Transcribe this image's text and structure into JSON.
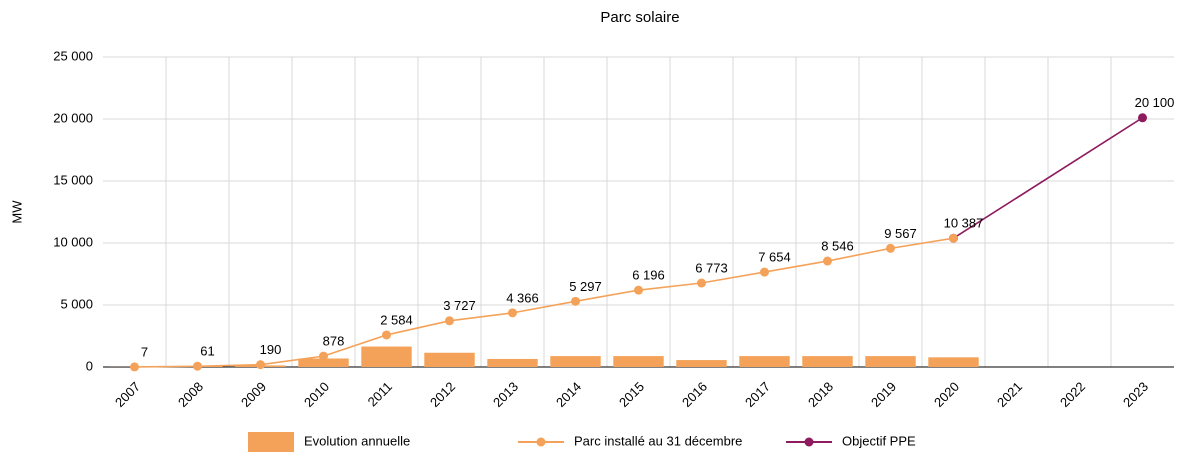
{
  "chart_data": {
    "type": "bar_line",
    "title": "Parc solaire",
    "ylabel": "MW",
    "categories": [
      "2007",
      "2008",
      "2009",
      "2010",
      "2011",
      "2012",
      "2013",
      "2014",
      "2015",
      "2016",
      "2017",
      "2018",
      "2019",
      "2020",
      "2021",
      "2022",
      "2023"
    ],
    "ylim": [
      0,
      25000
    ],
    "yticks": [
      0,
      {
        "value": 5000,
        "label": "5 000"
      },
      {
        "value": 10000,
        "label": "10 000"
      },
      {
        "value": 15000,
        "label": "15 000"
      },
      {
        "value": 20000,
        "label": "20 000"
      },
      {
        "value": 25000,
        "label": "25 000"
      }
    ],
    "grid": true,
    "legend": "bottom",
    "series": [
      {
        "name": "Evolution annuelle",
        "type": "bar",
        "color": "#f4a259",
        "values": [
          7,
          54,
          129,
          688,
          1650,
          1150,
          650,
          880,
          880,
          560,
          880,
          880,
          880,
          780,
          null,
          null,
          null
        ]
      },
      {
        "name": "Parc installé au 31 décembre",
        "type": "line",
        "color": "#f4a259",
        "values": [
          7,
          61,
          190,
          878,
          2584,
          3727,
          4366,
          5297,
          6196,
          6773,
          7654,
          8546,
          9567,
          10387,
          null,
          null,
          null
        ],
        "value_labels": [
          "7",
          "61",
          "190",
          "878",
          "2 584",
          "3 727",
          "4 366",
          "5 297",
          "6 196",
          "6 773",
          "7 654",
          "8 546",
          "9 567",
          "10 387",
          null,
          null,
          null
        ]
      },
      {
        "name": "Objectif PPE",
        "type": "line",
        "color": "#8e1b5e",
        "x": [
          "2020",
          "2023"
        ],
        "values": [
          10387,
          20100
        ],
        "value_labels": [
          null,
          "20 100"
        ]
      }
    ]
  }
}
